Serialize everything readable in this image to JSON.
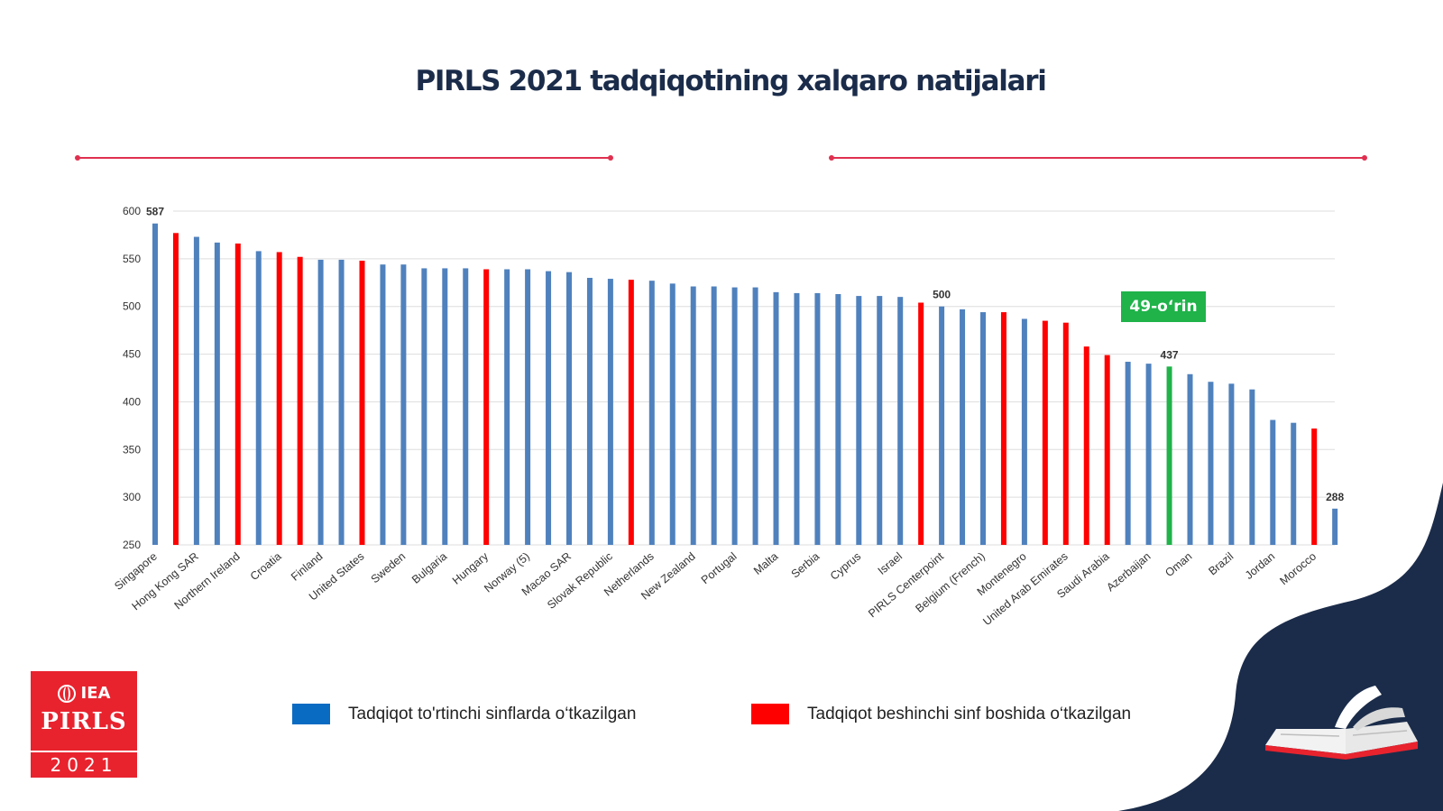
{
  "title": "PIRLS 2021 tadqiqotining xalqaro natijalari",
  "rank_badge": "49-o‘rin",
  "logo": {
    "org": "IEA",
    "name": "PIRLS",
    "year": "2021"
  },
  "legend": [
    {
      "label": "Tadqiqot to'rtinchi sinflarda o‘tkazilgan",
      "color": "#0a6bc2"
    },
    {
      "label": "Tadqiqot beshinchi sinf boshida o‘tkazilgan",
      "color": "#ff0000"
    }
  ],
  "colors": {
    "blue_bar": "#4f81bd",
    "red_bar": "#ff0000",
    "green_bar": "#1fb34a",
    "accent_line": "#e03050",
    "navy": "#1b2c4a"
  },
  "chart_data": {
    "type": "bar",
    "ylim": [
      250,
      600
    ],
    "yticks": [
      250,
      300,
      350,
      400,
      450,
      500,
      550,
      600
    ],
    "categories": [
      "Singapore",
      "",
      "Hong Kong SAR",
      "",
      "Northern Ireland",
      "",
      "Croatia",
      "",
      "Finland",
      "",
      "United States",
      "",
      "Sweden",
      "",
      "Bulgaria",
      "",
      "Hungary",
      "",
      "Norway (5)",
      "",
      "Macao SAR",
      "",
      "Slovak Republic",
      "",
      "Netherlands",
      "",
      "New Zealand",
      "",
      "Portugal",
      "",
      "Malta",
      "",
      "Serbia",
      "",
      "Cyprus",
      "",
      "Israel",
      "",
      " PIRLS Centerpoint",
      "",
      "Belgium (French)",
      "",
      "Montenegro",
      "",
      "United Arab Emirates",
      "",
      "Saudi Arabia",
      "",
      "Azerbaijan",
      "",
      "Oman",
      "",
      "Brazil",
      "",
      "Jordan",
      "",
      "Morocco",
      ""
    ],
    "values": [
      587,
      577,
      573,
      567,
      566,
      558,
      557,
      552,
      549,
      549,
      548,
      544,
      544,
      540,
      540,
      540,
      539,
      539,
      539,
      537,
      536,
      530,
      529,
      528,
      527,
      524,
      521,
      521,
      520,
      520,
      515,
      514,
      514,
      513,
      511,
      511,
      510,
      504,
      500,
      497,
      494,
      494,
      487,
      485,
      483,
      458,
      449,
      442,
      440,
      437,
      429,
      421,
      419,
      413,
      381,
      378,
      372,
      288
    ],
    "groups": [
      "fourth",
      "fifth",
      "fourth",
      "fourth",
      "fifth",
      "fourth",
      "fifth",
      "fifth",
      "fourth",
      "fourth",
      "fifth",
      "fourth",
      "fourth",
      "fourth",
      "fourth",
      "fourth",
      "fifth",
      "fourth",
      "fourth",
      "fourth",
      "fourth",
      "fourth",
      "fourth",
      "fifth",
      "fourth",
      "fourth",
      "fourth",
      "fourth",
      "fourth",
      "fourth",
      "fourth",
      "fourth",
      "fourth",
      "fourth",
      "fourth",
      "fourth",
      "fourth",
      "fifth",
      "fourth",
      "fourth",
      "fourth",
      "fifth",
      "fourth",
      "fifth",
      "fifth",
      "fifth",
      "fifth",
      "fourth",
      "fourth",
      "highlight",
      "fourth",
      "fourth",
      "fourth",
      "fourth",
      "fourth",
      "fourth",
      "fifth",
      "fourth"
    ],
    "data_labels": [
      "587",
      "",
      "",
      "",
      "",
      "",
      "",
      "",
      "",
      "",
      "",
      "",
      "",
      "",
      "",
      "",
      "",
      "",
      "",
      "",
      "",
      "",
      "",
      "",
      "",
      "",
      "",
      "",
      "",
      "",
      "",
      "",
      "",
      "",
      "",
      "",
      "",
      "",
      "500",
      "",
      "",
      "",
      "",
      "",
      "",
      "",
      "",
      "",
      "",
      "437",
      "",
      "",
      "",
      "",
      "",
      "",
      "",
      "288"
    ],
    "legend_position": "bottom",
    "grid": true
  }
}
